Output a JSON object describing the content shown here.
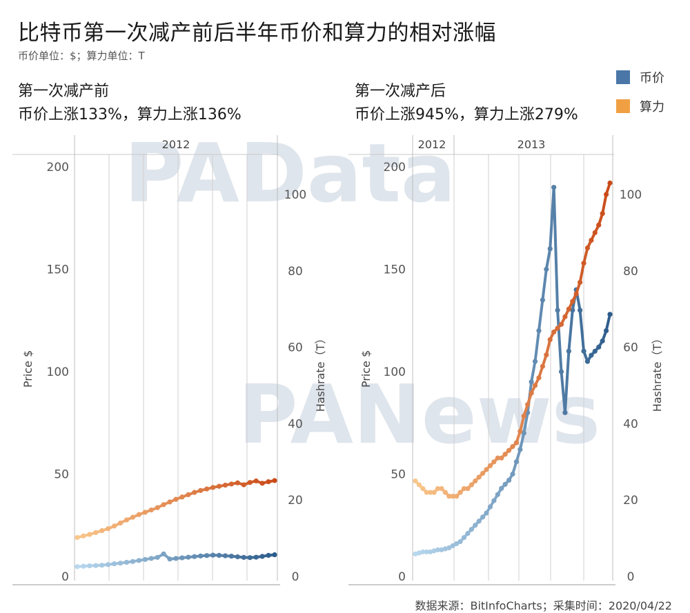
{
  "title": "比特币第一次减产前后半年币价和算力的相对涨幅",
  "subtitle": "币价单位：$；算力单位：T",
  "legend": [
    {
      "label": "币价",
      "color": "#4a77a8"
    },
    {
      "label": "算力",
      "color": "#f0a043"
    }
  ],
  "watermarks": [
    "PAData",
    "PANews"
  ],
  "footer": "数据来源：BitInfoCharts；采集时间：2020/04/22",
  "chart_data": [
    {
      "type": "line",
      "heading": "第一次减产前",
      "note": "币价上涨133%，算力上涨136%",
      "year_labels": [
        "2012"
      ],
      "ylabel": "Price $",
      "y2label": "Hashrate（T）",
      "ylim": [
        0,
        200
      ],
      "y2lim": [
        0,
        100
      ],
      "yticks": [
        0,
        50,
        100,
        150,
        200
      ],
      "y2ticks": [
        0,
        20,
        40,
        60,
        80,
        100
      ],
      "series": [
        {
          "axis": "y",
          "colors": [
            "#b8d8ee",
            "#2d5c8c"
          ],
          "values": [
            4.8,
            5.0,
            5.2,
            5.3,
            5.5,
            5.8,
            6.2,
            6.5,
            6.9,
            7.3,
            7.8,
            8.3,
            8.8,
            9.3,
            11.0,
            8.5,
            8.8,
            9.1,
            9.4,
            9.7,
            10.0,
            10.2,
            10.4,
            10.3,
            10.1,
            9.9,
            9.6,
            9.3,
            9.2,
            9.4,
            9.8,
            10.3,
            10.6
          ]
        },
        {
          "axis": "y2",
          "colors": [
            "#f9c78b",
            "#c94a18"
          ],
          "values": [
            10.2,
            10.6,
            11.0,
            11.5,
            12.0,
            12.5,
            13.2,
            14.0,
            14.8,
            15.5,
            16.2,
            16.8,
            17.4,
            18.0,
            18.8,
            19.5,
            20.2,
            20.8,
            21.4,
            22.0,
            22.5,
            22.9,
            23.3,
            23.6,
            23.9,
            24.2,
            24.5,
            24.0,
            24.6,
            25.0,
            24.4,
            24.8,
            25.1
          ]
        }
      ]
    },
    {
      "type": "line",
      "heading": "第一次减产后",
      "note": "币价上涨945%，算力上涨279%",
      "year_labels": [
        "2012",
        "2013"
      ],
      "ylabel": "Price $",
      "y2label": "Hashrate（T）",
      "ylim": [
        0,
        200
      ],
      "y2lim": [
        0,
        100
      ],
      "yticks": [
        0,
        50,
        100,
        150,
        200
      ],
      "y2ticks": [
        0,
        20,
        40,
        60,
        80,
        100
      ],
      "series": [
        {
          "axis": "y",
          "colors": [
            "#b8d8ee",
            "#2d5c8c"
          ],
          "values": [
            11,
            11.5,
            12,
            12,
            12,
            12.5,
            13,
            13,
            13.5,
            14,
            15,
            16,
            17,
            19,
            21,
            23,
            25,
            27,
            29,
            31,
            34,
            37,
            40,
            43,
            45,
            47,
            50,
            56,
            62,
            70,
            80,
            95,
            105,
            120,
            135,
            150,
            160,
            190,
            130,
            100,
            80,
            110,
            130,
            140,
            130,
            110,
            105,
            108,
            110,
            112,
            115,
            120,
            128
          ]
        },
        {
          "axis": "y2",
          "colors": [
            "#f9c78b",
            "#c94a18"
          ],
          "values": [
            25,
            24,
            23,
            22,
            22,
            22,
            23,
            23,
            22,
            21,
            21,
            21,
            22,
            23,
            23,
            24,
            25,
            26,
            27,
            28,
            29,
            30,
            31,
            31,
            32,
            33,
            34,
            35,
            38,
            42,
            45,
            48,
            50,
            52,
            55,
            58,
            62,
            64,
            65,
            66,
            68,
            70,
            72,
            74,
            77,
            82,
            86,
            88,
            90,
            92,
            95,
            100,
            103
          ]
        }
      ]
    }
  ]
}
